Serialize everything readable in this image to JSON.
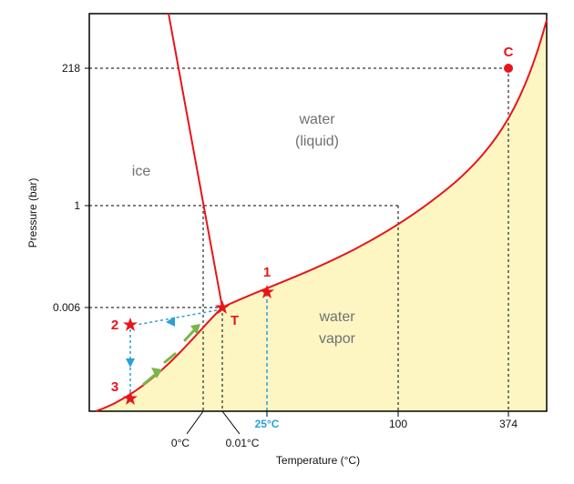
{
  "axes": {
    "xlabel": "Temperature (°C)",
    "ylabel": "Pressure (bar)",
    "x_ticks": [
      "0°C",
      "0.01°C",
      "25°C",
      "100",
      "374"
    ],
    "y_ticks": [
      "218",
      "1",
      "0.006"
    ]
  },
  "regions": {
    "ice": "ice",
    "water_line1": "water",
    "water_line2": "(liquid)",
    "vapor_line1": "water",
    "vapor_line2": "vapor"
  },
  "points": {
    "critical": "C",
    "triple": "T",
    "p1": "1",
    "p2": "2",
    "p3": "3"
  },
  "colors": {
    "curve": "#e8141b",
    "vapor_fill": "#fdf6c3",
    "highlight_tick": "#2b9fd8",
    "path_blue": "#2b9fd8",
    "path_green": "#7ab648",
    "grid_dash": "#000000"
  }
}
